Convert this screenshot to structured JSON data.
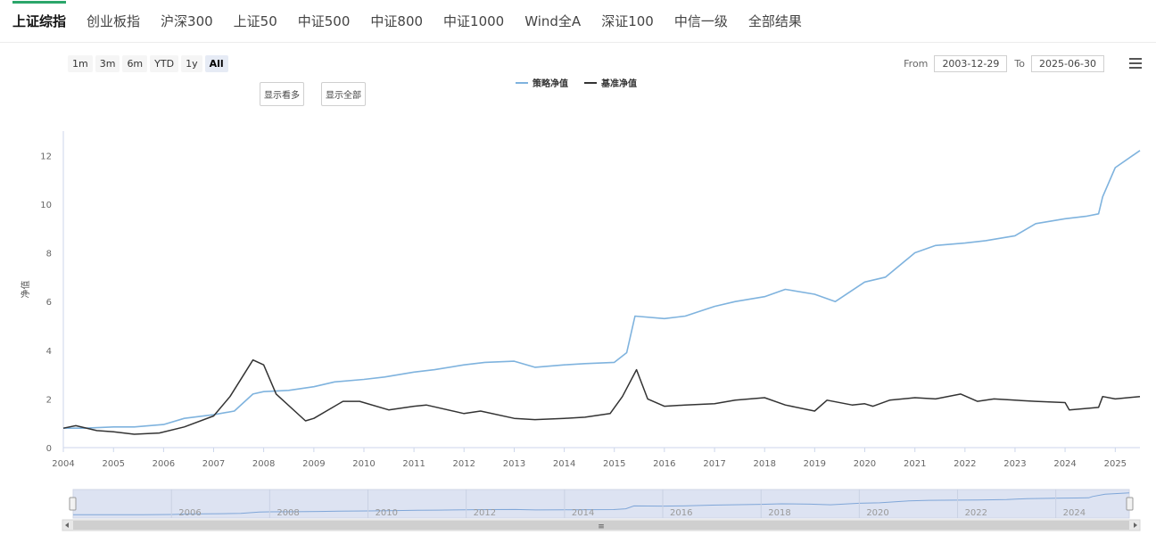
{
  "tabs": [
    {
      "label": "上证综指",
      "active": true
    },
    {
      "label": "创业板指",
      "active": false
    },
    {
      "label": "沪深300",
      "active": false
    },
    {
      "label": "上证50",
      "active": false
    },
    {
      "label": "中证500",
      "active": false
    },
    {
      "label": "中证800",
      "active": false
    },
    {
      "label": "中证1000",
      "active": false
    },
    {
      "label": "Wind全A",
      "active": false
    },
    {
      "label": "深证100",
      "active": false
    },
    {
      "label": "中信一级",
      "active": false
    },
    {
      "label": "全部结果",
      "active": false
    }
  ],
  "range_selector": {
    "buttons": [
      "1m",
      "3m",
      "6m",
      "YTD",
      "1y",
      "All"
    ],
    "selected": "All",
    "from_label": "From",
    "from_value": "2003-12-29",
    "to_label": "To",
    "to_value": "2025-06-30"
  },
  "toggles": {
    "show_few": "显示看多",
    "show_all": "显示全部"
  },
  "colors": {
    "accent": "#2ba66a",
    "strategy": "#7fb3de",
    "benchmark": "#333333"
  },
  "chart_data": {
    "type": "line",
    "title": "",
    "xlabel": "",
    "ylabel": "净值",
    "ylim": [
      0,
      13
    ],
    "xlim": [
      "2004-01-01",
      "2025-06-30"
    ],
    "y_ticks": [
      0,
      2,
      4,
      6,
      8,
      10,
      12
    ],
    "x_ticks": [
      "2004",
      "2005",
      "2006",
      "2007",
      "2008",
      "2009",
      "2010",
      "2011",
      "2012",
      "2013",
      "2014",
      "2015",
      "2016",
      "2017",
      "2018",
      "2019",
      "2020",
      "2021",
      "2022",
      "2023",
      "2024",
      "2025"
    ],
    "legend_position": "top-center",
    "grid": false,
    "series": [
      {
        "name": "策略净值",
        "color": "#7fb3de",
        "x": [
          "2004-01-01",
          "2004-06-01",
          "2005-01-01",
          "2005-06-01",
          "2006-01-01",
          "2006-06-01",
          "2007-01-01",
          "2007-06-01",
          "2007-10-15",
          "2008-01-01",
          "2008-07-01",
          "2009-01-01",
          "2009-06-01",
          "2010-01-01",
          "2010-06-01",
          "2011-01-01",
          "2011-06-01",
          "2012-01-01",
          "2012-06-01",
          "2013-01-01",
          "2013-06-01",
          "2014-01-01",
          "2014-06-01",
          "2015-01-01",
          "2015-04-01",
          "2015-06-01",
          "2016-01-01",
          "2016-06-01",
          "2017-01-01",
          "2017-06-01",
          "2018-01-01",
          "2018-06-01",
          "2019-01-01",
          "2019-06-01",
          "2020-01-01",
          "2020-06-01",
          "2021-01-01",
          "2021-06-01",
          "2022-01-01",
          "2022-06-01",
          "2023-01-01",
          "2023-06-01",
          "2024-01-01",
          "2024-06-01",
          "2024-09-01",
          "2024-10-01",
          "2025-01-01",
          "2025-06-30"
        ],
        "y": [
          0.8,
          0.8,
          0.85,
          0.85,
          0.95,
          1.2,
          1.35,
          1.5,
          2.2,
          2.3,
          2.35,
          2.5,
          2.7,
          2.8,
          2.9,
          3.1,
          3.2,
          3.4,
          3.5,
          3.55,
          3.3,
          3.4,
          3.45,
          3.5,
          3.9,
          5.4,
          5.3,
          5.4,
          5.8,
          6.0,
          6.2,
          6.5,
          6.3,
          6.0,
          6.8,
          7.0,
          8.0,
          8.3,
          8.4,
          8.5,
          8.7,
          9.2,
          9.4,
          9.5,
          9.6,
          10.3,
          11.5,
          12.2
        ]
      },
      {
        "name": "基准净值",
        "color": "#333333",
        "x": [
          "2004-01-01",
          "2004-04-01",
          "2004-09-01",
          "2005-01-01",
          "2005-06-01",
          "2005-12-01",
          "2006-06-01",
          "2007-01-01",
          "2007-05-01",
          "2007-10-15",
          "2008-01-01",
          "2008-04-01",
          "2008-11-01",
          "2009-01-01",
          "2009-08-01",
          "2009-12-01",
          "2010-07-01",
          "2011-01-01",
          "2011-04-01",
          "2012-01-01",
          "2012-05-01",
          "2013-01-01",
          "2013-06-01",
          "2014-01-01",
          "2014-06-01",
          "2014-12-01",
          "2015-03-01",
          "2015-06-12",
          "2015-09-01",
          "2016-01-01",
          "2016-06-01",
          "2017-01-01",
          "2017-06-01",
          "2018-01-01",
          "2018-06-01",
          "2019-01-01",
          "2019-04-01",
          "2019-10-01",
          "2020-01-01",
          "2020-03-01",
          "2020-07-01",
          "2021-01-01",
          "2021-06-01",
          "2021-12-01",
          "2022-04-01",
          "2022-08-01",
          "2023-01-01",
          "2023-06-01",
          "2024-01-01",
          "2024-02-01",
          "2024-09-01",
          "2024-10-01",
          "2025-01-01",
          "2025-06-30"
        ],
        "y": [
          0.8,
          0.9,
          0.7,
          0.65,
          0.55,
          0.6,
          0.85,
          1.3,
          2.1,
          3.6,
          3.4,
          2.2,
          1.1,
          1.2,
          1.9,
          1.9,
          1.55,
          1.7,
          1.75,
          1.4,
          1.5,
          1.2,
          1.15,
          1.2,
          1.25,
          1.4,
          2.1,
          3.2,
          2.0,
          1.7,
          1.75,
          1.8,
          1.95,
          2.05,
          1.75,
          1.5,
          1.95,
          1.75,
          1.8,
          1.7,
          1.95,
          2.05,
          2.0,
          2.2,
          1.9,
          2.0,
          1.95,
          1.9,
          1.85,
          1.55,
          1.65,
          2.1,
          2.0,
          2.1
        ]
      }
    ],
    "navigator": {
      "x_ticks": [
        "2006",
        "2008",
        "2010",
        "2012",
        "2014",
        "2016",
        "2018",
        "2020",
        "2022",
        "2024"
      ],
      "scrollbar_glyph": "≡"
    }
  }
}
